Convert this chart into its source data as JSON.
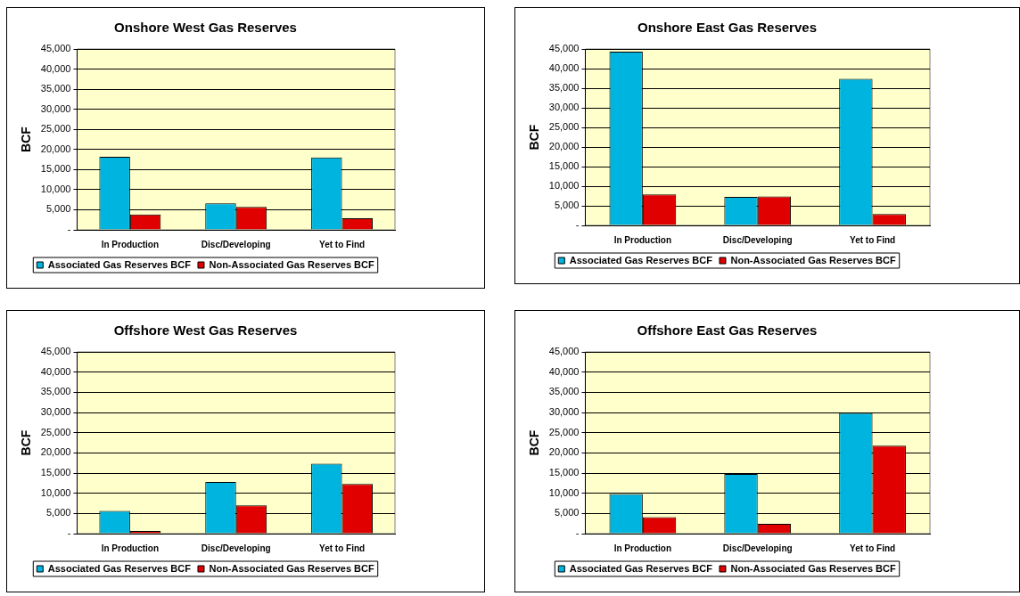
{
  "chart_data": [
    {
      "type": "bar",
      "title": "Onshore West Gas Reserves",
      "ylabel": "BCF",
      "categories": [
        "In Production",
        "Disc/Developing",
        "Yet to Find"
      ],
      "series": [
        {
          "name": "Associated Gas Reserves BCF",
          "color": "#00b4e0",
          "values": [
            18200,
            6600,
            18000
          ]
        },
        {
          "name": "Non-Associated Gas Reserves BCF",
          "color": "#e00000",
          "values": [
            3800,
            5700,
            2900
          ]
        }
      ],
      "ylim": [
        0,
        45000
      ],
      "yticks": [
        {
          "value": 0,
          "label": "-"
        },
        {
          "value": 5000,
          "label": "5,000"
        },
        {
          "value": 10000,
          "label": "10,000"
        },
        {
          "value": 15000,
          "label": "15,000"
        },
        {
          "value": 20000,
          "label": "20,000"
        },
        {
          "value": 25000,
          "label": "25,000"
        },
        {
          "value": 30000,
          "label": "30,000"
        },
        {
          "value": 35000,
          "label": "35,000"
        },
        {
          "value": 40000,
          "label": "40,000"
        },
        {
          "value": 45000,
          "label": "45,000"
        }
      ],
      "grid": "y",
      "legend": "bottom"
    },
    {
      "type": "bar",
      "title": "Onshore East Gas Reserves",
      "ylabel": "BCF",
      "categories": [
        "In Production",
        "Disc/Developing",
        "Yet to Find"
      ],
      "series": [
        {
          "name": "Associated Gas Reserves BCF",
          "color": "#00b4e0",
          "values": [
            44300,
            7300,
            37400
          ]
        },
        {
          "name": "Non-Associated Gas Reserves BCF",
          "color": "#e00000",
          "values": [
            7900,
            7400,
            2900
          ]
        }
      ],
      "ylim": [
        0,
        45000
      ],
      "yticks": [
        {
          "value": 0,
          "label": "-"
        },
        {
          "value": 5000,
          "label": "5,000"
        },
        {
          "value": 10000,
          "label": "10,000"
        },
        {
          "value": 15000,
          "label": "15,000"
        },
        {
          "value": 20000,
          "label": "20,000"
        },
        {
          "value": 25000,
          "label": "25,000"
        },
        {
          "value": 30000,
          "label": "30,000"
        },
        {
          "value": 35000,
          "label": "35,000"
        },
        {
          "value": 40000,
          "label": "40,000"
        },
        {
          "value": 45000,
          "label": "45,000"
        }
      ],
      "grid": "y",
      "legend": "bottom"
    },
    {
      "type": "bar",
      "title": "Offshore West Gas Reserves",
      "ylabel": "BCF",
      "categories": [
        "In Production",
        "Disc/Developing",
        "Yet to Find"
      ],
      "series": [
        {
          "name": "Associated Gas Reserves BCF",
          "color": "#00b4e0",
          "values": [
            5600,
            12800,
            17300
          ]
        },
        {
          "name": "Non-Associated Gas Reserves BCF",
          "color": "#e00000",
          "values": [
            200,
            7000,
            12300
          ]
        }
      ],
      "ylim": [
        0,
        45000
      ],
      "yticks": [
        {
          "value": 0,
          "label": "-"
        },
        {
          "value": 5000,
          "label": "5,000"
        },
        {
          "value": 10000,
          "label": "10,000"
        },
        {
          "value": 15000,
          "label": "15,000"
        },
        {
          "value": 20000,
          "label": "20,000"
        },
        {
          "value": 25000,
          "label": "25,000"
        },
        {
          "value": 30000,
          "label": "30,000"
        },
        {
          "value": 35000,
          "label": "35,000"
        },
        {
          "value": 40000,
          "label": "40,000"
        },
        {
          "value": 45000,
          "label": "45,000"
        }
      ],
      "grid": "y",
      "legend": "bottom"
    },
    {
      "type": "bar",
      "title": "Offshore East Gas Reserves",
      "ylabel": "BCF",
      "categories": [
        "In Production",
        "Disc/Developing",
        "Yet to Find"
      ],
      "series": [
        {
          "name": "Associated Gas Reserves BCF",
          "color": "#00b4e0",
          "values": [
            9800,
            14800,
            29900
          ]
        },
        {
          "name": "Non-Associated Gas Reserves BCF",
          "color": "#e00000",
          "values": [
            4100,
            2400,
            21800
          ]
        }
      ],
      "ylim": [
        0,
        45000
      ],
      "yticks": [
        {
          "value": 0,
          "label": "-"
        },
        {
          "value": 5000,
          "label": "5,000"
        },
        {
          "value": 10000,
          "label": "10,000"
        },
        {
          "value": 15000,
          "label": "15,000"
        },
        {
          "value": 20000,
          "label": "20,000"
        },
        {
          "value": 25000,
          "label": "25,000"
        },
        {
          "value": 30000,
          "label": "30,000"
        },
        {
          "value": 35000,
          "label": "35,000"
        },
        {
          "value": 40000,
          "label": "40,000"
        },
        {
          "value": 45000,
          "label": "45,000"
        }
      ],
      "grid": "y",
      "legend": "bottom"
    }
  ]
}
